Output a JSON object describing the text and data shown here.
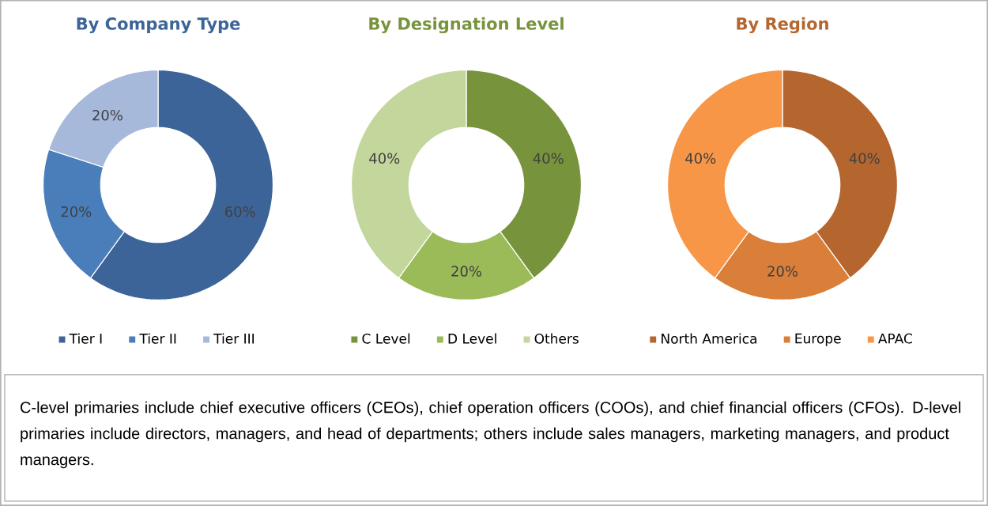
{
  "chart_data": [
    {
      "type": "donut",
      "title": "By Company Type",
      "categories": [
        "Tier I",
        "Tier II",
        "Tier III"
      ],
      "values": [
        60,
        20,
        20
      ],
      "colors": [
        "#3c6498",
        "#4a7ebb",
        "#a7b9db"
      ],
      "value_labels": [
        "60%",
        "20%",
        "20%"
      ],
      "legend": "bottom"
    },
    {
      "type": "donut",
      "title": "By Designation Level",
      "categories": [
        "C Level",
        "D Level",
        "Others"
      ],
      "values": [
        40,
        20,
        40
      ],
      "colors": [
        "#77933c",
        "#9bbb59",
        "#c3d69b"
      ],
      "value_labels": [
        "40%",
        "20%",
        "40%"
      ],
      "legend": "bottom"
    },
    {
      "type": "donut",
      "title": "By Region",
      "categories": [
        "North America",
        "Europe",
        "APAC"
      ],
      "values": [
        40,
        20,
        40
      ],
      "colors": [
        "#b5662f",
        "#d97f3a",
        "#f79646"
      ],
      "value_labels": [
        "40%",
        "20%",
        "40%"
      ],
      "legend": "bottom",
      "annotations": [
        "C-level primaries include chief executive officers (CEOs), chief operation officers (COOs), and chief financial officers (CFOs). D-level primaries include directors, managers, and head of departments; others include sales managers, marketing managers, and product managers."
      ]
    }
  ]
}
